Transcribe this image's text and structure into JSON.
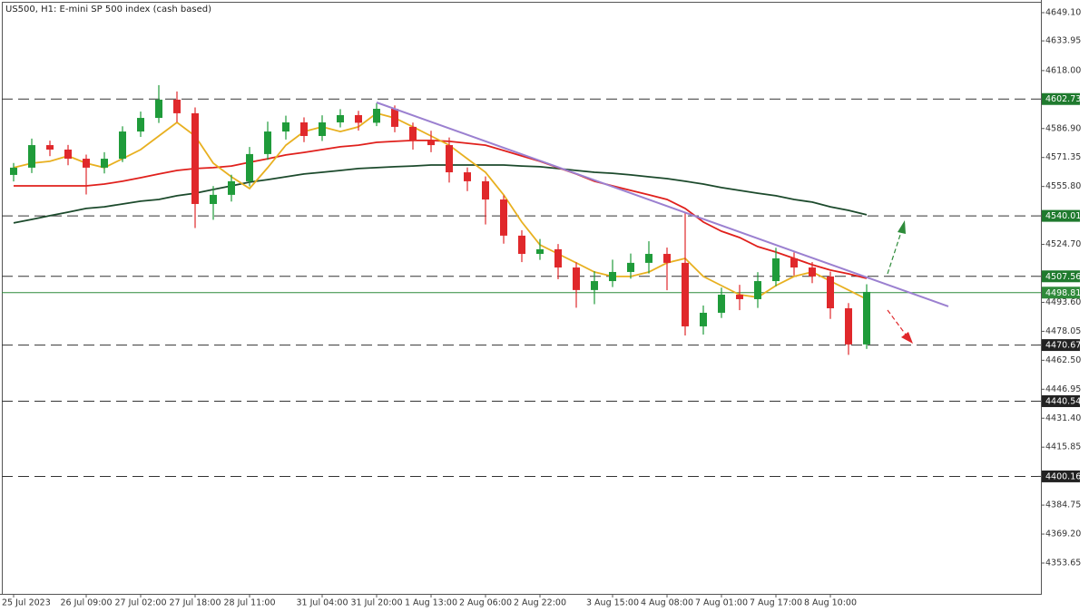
{
  "chart_data": {
    "type": "candlestick",
    "title": "US500, H1:  E-mini SP 500 index (cash based)",
    "categories": [
      "25 Jul 2023",
      null,
      null,
      null,
      "26 Jul 09:00",
      null,
      null,
      "27 Jul 02:00",
      null,
      null,
      "27 Jul 18:00",
      null,
      null,
      "28 Jul 11:00",
      null,
      null,
      null,
      "31 Jul 04:00",
      null,
      null,
      "31 Jul 20:00",
      null,
      null,
      "1 Aug 13:00",
      null,
      null,
      "2 Aug 06:00",
      null,
      null,
      "2 Aug 22:00",
      null,
      null,
      null,
      "3 Aug 15:00",
      null,
      null,
      "4 Aug 08:00",
      null,
      null,
      "7 Aug 01:00",
      null,
      null,
      "7 Aug 17:00",
      null,
      null,
      "8 Aug 10:00",
      null,
      null
    ],
    "open": [
      4562.0,
      4565.9,
      4578.0,
      4575.6,
      4570.7,
      4565.9,
      4570.7,
      4585.3,
      4592.6,
      4602.4,
      4595.1,
      4546.4,
      4551.3,
      4558.6,
      4573.2,
      4585.3,
      4590.2,
      4582.9,
      4590.2,
      4594.1,
      4590.0,
      4597.5,
      4587.8,
      4580.5,
      4578.0,
      4563.4,
      4558.6,
      4548.8,
      4529.4,
      4519.6,
      4522.1,
      4512.3,
      4500.2,
      4505.0,
      4509.9,
      4514.8,
      4519.6,
      4514.8,
      4480.7,
      4488.0,
      4497.7,
      4495.3,
      4505.0,
      4517.2,
      4512.3,
      4507.5,
      4490.4,
      4471.0
    ],
    "high": [
      4568.4,
      4581.5,
      4580.4,
      4578.1,
      4572.9,
      4574.2,
      4588.1,
      4596.0,
      4610.2,
      4606.8,
      4598.2,
      4556.0,
      4562.1,
      4577.0,
      4590.6,
      4593.8,
      4592.9,
      4594.0,
      4597.3,
      4596.4,
      4600.6,
      4599.3,
      4590.1,
      4585.7,
      4582.1,
      4566.0,
      4561.2,
      4551.0,
      4532.3,
      4527.6,
      4524.9,
      4515.1,
      4510.3,
      4516.5,
      4519.8,
      4526.4,
      4523.0,
      4541.5,
      4491.9,
      4501.5,
      4503.0,
      4509.8,
      4522.9,
      4520.4,
      4515.2,
      4510.1,
      4493.2,
      4503.3
    ],
    "low": [
      4558.5,
      4563.0,
      4572.1,
      4567.2,
      4551.5,
      4562.8,
      4568.9,
      4582.4,
      4589.9,
      4590.3,
      4533.5,
      4537.9,
      4547.7,
      4555.9,
      4570.1,
      4581.0,
      4579.6,
      4580.2,
      4587.5,
      4585.8,
      4588.2,
      4584.9,
      4575.6,
      4574.2,
      4557.9,
      4553.3,
      4535.4,
      4525.1,
      4515.2,
      4516.4,
      4506.0,
      4490.7,
      4492.6,
      4501.8,
      4506.3,
      4509.1,
      4500.1,
      4475.8,
      4476.3,
      4485.2,
      4489.4,
      4490.6,
      4502.2,
      4508.0,
      4503.9,
      4484.7,
      4465.4,
      4468.6
    ],
    "close": [
      4565.9,
      4578.0,
      4575.6,
      4570.7,
      4565.9,
      4570.7,
      4585.3,
      4592.6,
      4602.4,
      4595.1,
      4546.4,
      4551.3,
      4558.6,
      4573.2,
      4585.3,
      4590.2,
      4582.9,
      4590.2,
      4594.1,
      4590.0,
      4597.5,
      4587.8,
      4580.5,
      4578.0,
      4563.4,
      4558.6,
      4548.8,
      4529.4,
      4519.6,
      4522.1,
      4512.3,
      4500.2,
      4505.0,
      4509.9,
      4514.8,
      4519.6,
      4514.8,
      4480.7,
      4488.0,
      4497.7,
      4495.3,
      4505.0,
      4517.2,
      4512.3,
      4507.5,
      4490.4,
      4471.0,
      4499.2
    ],
    "up_color": "#1f9b3a",
    "down_color": "#e0282b",
    "moving_averages": [
      {
        "color": "#1c4a2c",
        "values": [
          4536.2,
          4538.1,
          4540.1,
          4542.0,
          4544.0,
          4544.9,
          4546.4,
          4547.9,
          4548.8,
          4550.8,
          4552.2,
          4554.2,
          4556.1,
          4558.1,
          4559.5,
          4561.0,
          4562.5,
          4563.4,
          4564.4,
          4565.4,
          4565.9,
          4566.4,
          4566.8,
          4567.3,
          4567.3,
          4567.3,
          4567.3,
          4567.3,
          4566.8,
          4566.4,
          4565.4,
          4564.4,
          4563.4,
          4562.9,
          4562.0,
          4561.0,
          4560.0,
          4558.6,
          4557.1,
          4555.2,
          4553.7,
          4552.2,
          4550.8,
          4548.8,
          4547.4,
          4544.9,
          4543.0,
          4540.6
        ]
      },
      {
        "color": "#e0201c",
        "values": [
          4556.1,
          4556.1,
          4556.1,
          4556.1,
          4556.1,
          4557.1,
          4558.6,
          4560.5,
          4562.5,
          4564.4,
          4565.4,
          4565.9,
          4566.8,
          4568.8,
          4570.7,
          4572.7,
          4574.1,
          4575.6,
          4577.1,
          4578.0,
          4579.5,
          4580.0,
          4580.5,
          4580.5,
          4580.0,
          4579.0,
          4578.0,
          4575.1,
          4572.2,
          4569.3,
          4565.9,
          4562.5,
          4558.6,
          4556.1,
          4553.7,
          4551.3,
          4548.8,
          4544.0,
          4536.7,
          4531.8,
          4528.4,
          4523.5,
          4520.6,
          4517.2,
          4513.8,
          4510.9,
          4508.9,
          4506.5
        ]
      },
      {
        "color": "#e8b020",
        "values": [
          4565.9,
          4568.3,
          4569.3,
          4572.2,
          4568.3,
          4565.9,
          4570.7,
          4575.6,
          4582.9,
          4590.2,
          4582.9,
          4568.3,
          4561.0,
          4554.7,
          4565.9,
          4578.0,
          4585.3,
          4587.8,
          4585.3,
          4587.8,
          4595.1,
          4592.6,
          4587.8,
          4582.9,
          4578.0,
          4570.7,
          4563.4,
          4551.3,
          4536.7,
          4524.5,
          4519.6,
          4514.8,
          4509.9,
          4507.5,
          4507.5,
          4509.9,
          4514.8,
          4517.2,
          4507.5,
          4502.6,
          4497.7,
          4496.3,
          4502.6,
          4507.5,
          4509.9,
          4505.0,
          4500.2,
          4495.3
        ]
      }
    ],
    "trendline": {
      "color": "#9b80d0",
      "x": [
        20,
        51.5
      ],
      "values": [
        4600.9,
        4491.4
      ]
    },
    "levels": [
      {
        "value": 4602.73,
        "color": "#1f7a2e"
      },
      {
        "value": 4540.01,
        "color": "#1f7a2e"
      },
      {
        "value": 4507.56,
        "color": "#1f7a2e"
      },
      {
        "value": 4470.67,
        "color": "#222222"
      },
      {
        "value": 4440.54,
        "color": "#222222"
      },
      {
        "value": 4400.16,
        "color": "#222222"
      }
    ],
    "current_price": {
      "value": 4498.81,
      "color": "#2f8a3a"
    },
    "ylim": [
      4337.1,
      4655.9
    ],
    "yticks": [
      {
        "value": 4649.1,
        "label": "4649.10"
      },
      4633.95,
      {
        "value": 4618,
        "label": "4618.00"
      },
      {
        "value": 4586.9,
        "label": "4586.90"
      },
      4571.35,
      {
        "value": 4555.8,
        "label": "4555.80"
      },
      {
        "value": 4524.7,
        "label": "4524.70"
      },
      {
        "value": 4493.6,
        "label": "4493.60"
      },
      4478.05,
      {
        "value": 4462.5,
        "label": "4462.50"
      },
      4446.95,
      {
        "value": 4431.4,
        "label": "4431.40"
      },
      4415.85,
      4384.75,
      {
        "value": 4369.2,
        "label": "4369.20"
      },
      4353.65
    ]
  }
}
